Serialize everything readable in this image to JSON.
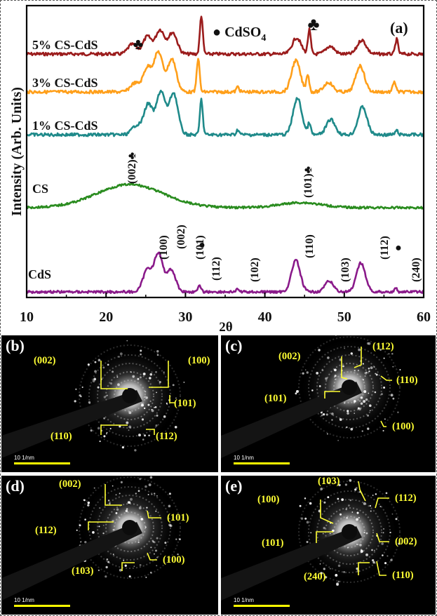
{
  "figure": {
    "panel_a_label": "(a)",
    "x_label": "2θ",
    "y_label": "Intensity (Arb. Units)",
    "legend_cdso4": "● CdSO",
    "legend_cdso4_sub": "4",
    "club_symbol": "♣",
    "dot_symbol": "●"
  },
  "chart_data": {
    "type": "line",
    "xlabel": "2θ",
    "ylabel": "Intensity (Arb. Units)",
    "xlim": [
      10,
      60
    ],
    "xticks": [
      "10",
      "20",
      "30",
      "40",
      "50",
      "60"
    ],
    "series": [
      {
        "name": "5% CS-CdS",
        "color": "#9b1c1c",
        "peaks": [
          [
            23.3,
            0.25
          ],
          [
            25.2,
            0.45
          ],
          [
            26.8,
            0.62
          ],
          [
            28.4,
            0.55
          ],
          [
            32.0,
            1.0
          ],
          [
            44.0,
            0.42
          ],
          [
            45.6,
            0.62
          ],
          [
            48.2,
            0.2
          ],
          [
            52.2,
            0.36
          ],
          [
            56.6,
            0.38
          ]
        ]
      },
      {
        "name": "3% CS-CdS",
        "color": "#ff9f1a",
        "peaks": [
          [
            23.6,
            0.2
          ],
          [
            25.2,
            0.55
          ],
          [
            26.6,
            0.9
          ],
          [
            28.3,
            0.75
          ],
          [
            31.6,
            0.78
          ],
          [
            36.6,
            0.12
          ],
          [
            43.9,
            0.72
          ],
          [
            45.4,
            0.4
          ],
          [
            48.0,
            0.22
          ],
          [
            52.0,
            0.6
          ],
          [
            56.3,
            0.25
          ]
        ]
      },
      {
        "name": "1% CS-CdS",
        "color": "#1f8a8a",
        "peaks": [
          [
            23.8,
            0.18
          ],
          [
            25.3,
            0.6
          ],
          [
            26.9,
            0.85
          ],
          [
            28.5,
            0.82
          ],
          [
            32.0,
            0.7
          ],
          [
            36.6,
            0.1
          ],
          [
            44.1,
            0.72
          ],
          [
            45.6,
            0.22
          ],
          [
            48.3,
            0.3
          ],
          [
            52.3,
            0.55
          ],
          [
            56.6,
            0.08
          ]
        ]
      },
      {
        "name": "CS",
        "color": "#2a8c1f",
        "peaks": [
          [
            23.0,
            0.55
          ],
          [
            44.5,
            0.12
          ]
        ]
      },
      {
        "name": "CdS",
        "color": "#8a1a8a",
        "peaks": [
          [
            25.2,
            0.42
          ],
          [
            26.6,
            0.72
          ],
          [
            28.2,
            0.42
          ],
          [
            31.8,
            0.12
          ],
          [
            36.6,
            0.05
          ],
          [
            43.9,
            0.6
          ],
          [
            48.1,
            0.2
          ],
          [
            52.1,
            0.55
          ],
          [
            56.5,
            0.06
          ]
        ]
      }
    ],
    "annotations": {
      "CS": [
        "(002)♣",
        "(101)♣"
      ],
      "CdS": [
        "(100)",
        "(002)",
        "(101)",
        "(112)",
        "(102)",
        "(110)",
        "(103)",
        "(112)",
        "(240)"
      ],
      "5% CS-CdS": [
        "♣",
        "● CdSO4",
        "♣"
      ]
    }
  },
  "panels": [
    {
      "label": "(b)",
      "scale": "10 1/nm",
      "rings": [
        "(002)",
        "(100)",
        "(101)",
        "(110)",
        "(112)"
      ]
    },
    {
      "label": "(c)",
      "scale": "10 1/nm",
      "rings": [
        "(002)",
        "(112)",
        "(110)",
        "(101)",
        "(100)"
      ]
    },
    {
      "label": "(d)",
      "scale": "10 1/nm",
      "rings": [
        "(002)",
        "(101)",
        "(112)",
        "(100)",
        "(103)"
      ]
    },
    {
      "label": "(e)",
      "scale": "10 1/nm",
      "rings": [
        "(103)",
        "(112)",
        "(100)",
        "(002)",
        "(101)",
        "(240)",
        "(110)"
      ]
    }
  ]
}
